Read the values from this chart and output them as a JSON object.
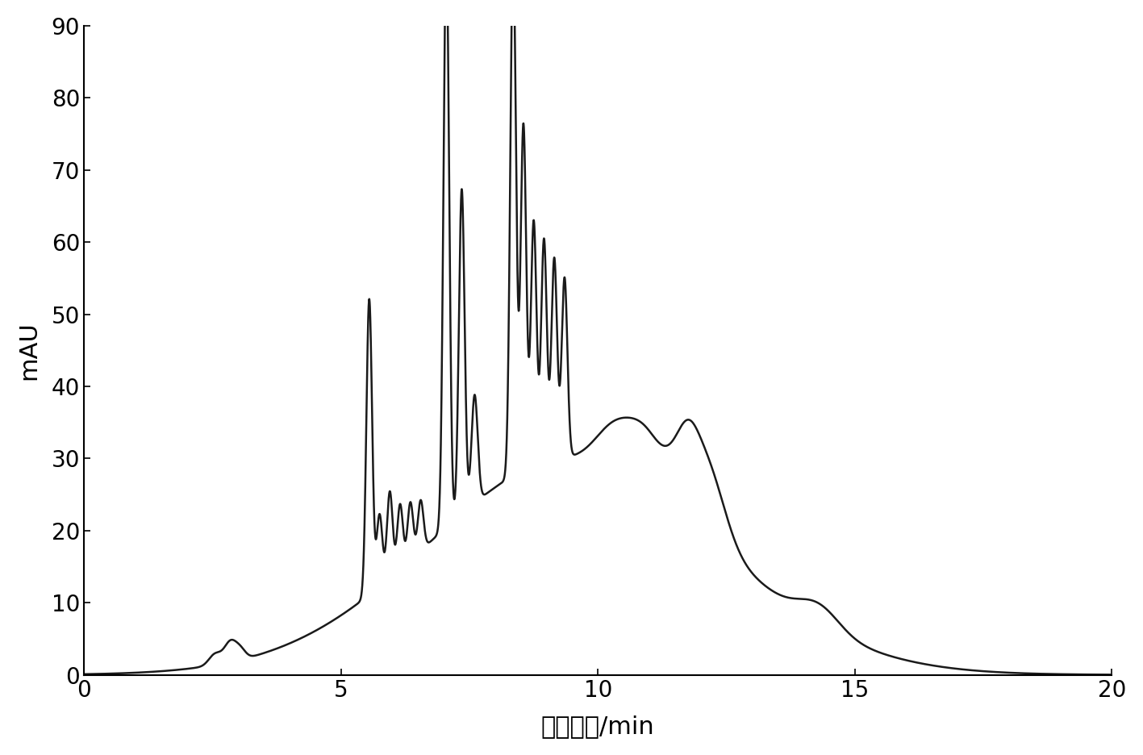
{
  "xlabel": "保留时间/min",
  "ylabel": "mAU",
  "xlim": [
    0,
    20
  ],
  "ylim": [
    0,
    90
  ],
  "xticks": [
    0,
    5,
    10,
    15,
    20
  ],
  "yticks": [
    0,
    10,
    20,
    30,
    40,
    50,
    60,
    70,
    80,
    90
  ],
  "line_color": "#1a1a1a",
  "line_width": 1.8,
  "background_color": "#ffffff"
}
